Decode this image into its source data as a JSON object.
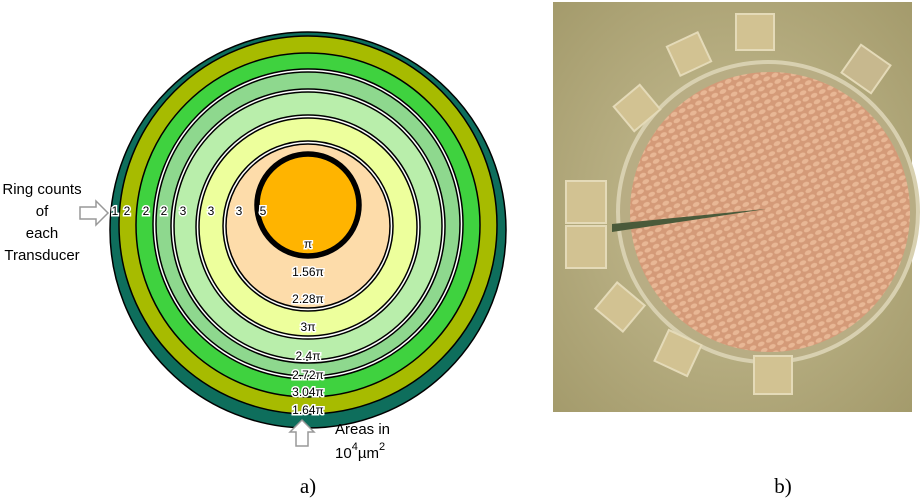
{
  "panel_a": {
    "ring_counts_label": [
      "Ring counts",
      "of",
      "each",
      "Transducer"
    ],
    "ring_counts": [
      "1",
      "2",
      "2",
      "2",
      "3",
      "3",
      "3",
      "5"
    ],
    "areas": [
      "1.64π",
      "3.04π",
      "2.72π",
      "2.4π",
      "3π",
      "2.28π",
      "1.56π",
      "π"
    ],
    "areas_label": "Areas in",
    "areas_unit": [
      "10",
      "4",
      "µm",
      "2"
    ],
    "caption": "a)"
  },
  "panel_b": {
    "caption": "b)"
  }
}
